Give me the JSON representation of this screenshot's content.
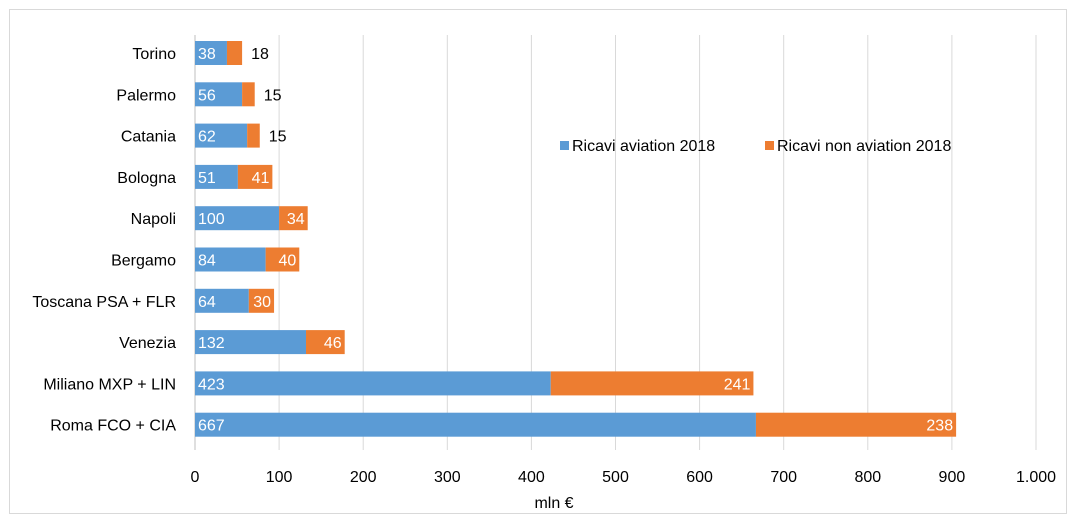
{
  "chart_data": {
    "type": "bar",
    "orientation": "horizontal",
    "stacked": true,
    "categories": [
      "Roma FCO + CIA",
      "Miliano MXP + LIN",
      "Venezia",
      "Toscana PSA + FLR",
      "Bergamo",
      "Napoli",
      "Bologna",
      "Catania",
      "Palermo",
      "Torino"
    ],
    "series": [
      {
        "name": "Ricavi aviation 2018",
        "color": "#5b9bd5",
        "values": [
          667,
          423,
          132,
          64,
          84,
          100,
          51,
          62,
          56,
          38
        ],
        "labels": [
          "667",
          "423",
          "132",
          "64",
          "84",
          "100",
          "51",
          "62",
          "56",
          "38"
        ]
      },
      {
        "name": "Ricavi non aviation 2018",
        "color": "#ed7d31",
        "values": [
          238,
          241,
          46,
          30,
          40,
          34,
          41,
          15,
          15,
          18
        ],
        "labels": [
          "238",
          "241",
          "46",
          "30",
          "40",
          "34",
          "41",
          "15",
          "15",
          "18"
        ]
      }
    ],
    "xlim": [
      0,
      1000
    ],
    "ticks": [
      0,
      100,
      200,
      300,
      400,
      500,
      600,
      700,
      800,
      900,
      1000
    ],
    "tick_labels": [
      "0",
      "100",
      "200",
      "300",
      "400",
      "500",
      "600",
      "700",
      "800",
      "900",
      "1.000"
    ],
    "xlabel": "mln €",
    "ylabel": "",
    "title": "",
    "grid": "vertical",
    "legend_position": "top-right"
  }
}
